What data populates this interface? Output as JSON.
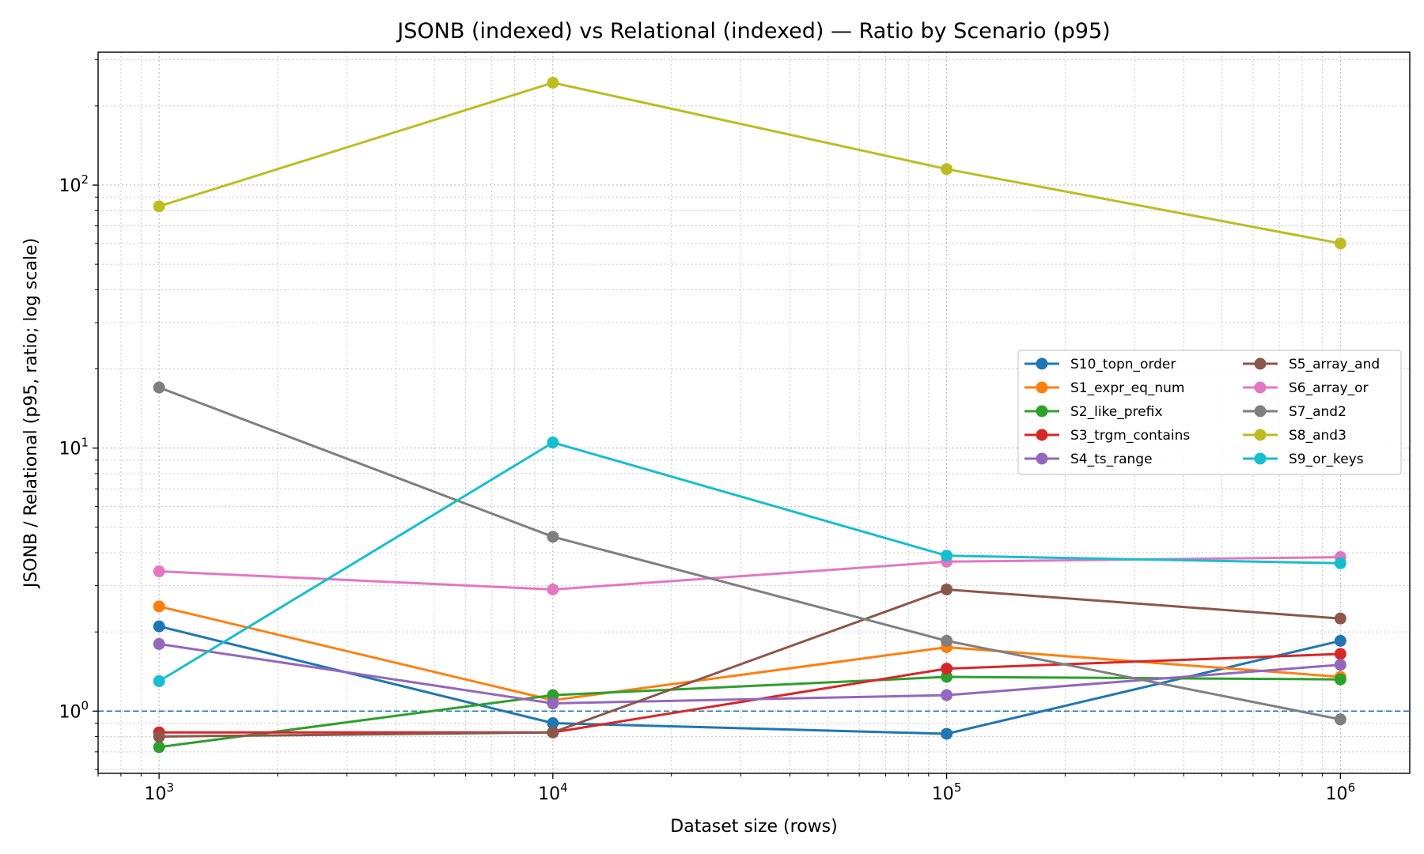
{
  "chart_data": {
    "type": "line",
    "title": "JSONB (indexed) vs Relational (indexed) — Ratio by Scenario (p95)",
    "xlabel": "Dataset size (rows)",
    "ylabel": "JSONB / Relational (p95, ratio; log scale)",
    "xscale": "log",
    "yscale": "log",
    "xlim": [
      700,
      1500000
    ],
    "ylim": [
      0.58,
      320
    ],
    "x": [
      1000,
      10000,
      100000,
      1000000
    ],
    "x_tick_labels": [
      {
        "base": "10",
        "exp": "3"
      },
      {
        "base": "10",
        "exp": "4"
      },
      {
        "base": "10",
        "exp": "5"
      },
      {
        "base": "10",
        "exp": "6"
      }
    ],
    "y_tick_labels": [
      {
        "value": 1,
        "base": "10",
        "exp": "0"
      },
      {
        "value": 10,
        "base": "10",
        "exp": "1"
      },
      {
        "value": 100,
        "base": "10",
        "exp": "2"
      }
    ],
    "grid": true,
    "reference_line": {
      "y": 1.0,
      "color": "#1f77b4",
      "style": "dashed"
    },
    "legend": {
      "placement": "right",
      "columns": 2
    },
    "series": [
      {
        "name": "S10_topn_order",
        "color": "#1f77b4",
        "values": [
          2.1,
          0.9,
          0.82,
          1.85
        ]
      },
      {
        "name": "S1_expr_eq_num",
        "color": "#ff7f0e",
        "values": [
          2.5,
          1.1,
          1.75,
          1.35
        ]
      },
      {
        "name": "S2_like_prefix",
        "color": "#2ca02c",
        "values": [
          0.73,
          1.15,
          1.35,
          1.32
        ]
      },
      {
        "name": "S3_trgm_contains",
        "color": "#d62728",
        "values": [
          0.83,
          0.83,
          1.45,
          1.65
        ]
      },
      {
        "name": "S4_ts_range",
        "color": "#9467bd",
        "values": [
          1.8,
          1.07,
          1.15,
          1.5
        ]
      },
      {
        "name": "S5_array_and",
        "color": "#8c564b",
        "values": [
          0.8,
          0.83,
          2.9,
          2.25
        ]
      },
      {
        "name": "S6_array_or",
        "color": "#e377c2",
        "values": [
          3.4,
          2.9,
          3.7,
          3.85
        ]
      },
      {
        "name": "S7_and2",
        "color": "#7f7f7f",
        "values": [
          17,
          4.6,
          1.85,
          0.93
        ]
      },
      {
        "name": "S8_and3",
        "color": "#bcbd22",
        "values": [
          83,
          245,
          115,
          60
        ]
      },
      {
        "name": "S9_or_keys",
        "color": "#17becf",
        "values": [
          1.3,
          10.5,
          3.9,
          3.65
        ]
      }
    ]
  }
}
